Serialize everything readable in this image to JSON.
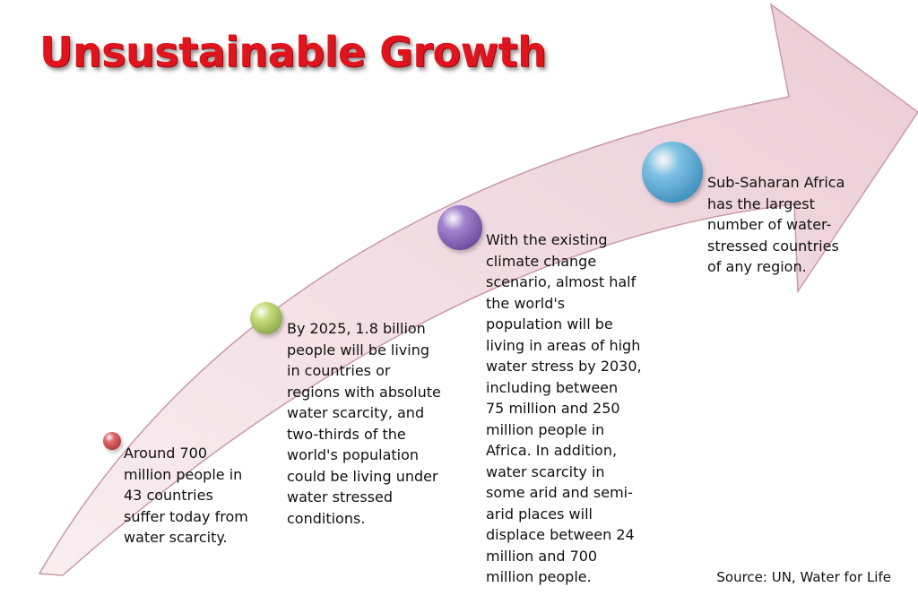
{
  "title": "Unsustainable Growth",
  "steps": [
    {
      "text": "Around 700\nmillion people in\n43 countries\nsuffer today from\nwater scarcity.",
      "color": "#e06a6a"
    },
    {
      "text": "By 2025, 1.8 billion\npeople will be living\nin countries or\nregions with absolute\nwater scarcity, and\ntwo-thirds of the\nworld's population\ncould be living under\nwater stressed\nconditions.",
      "color": "#c6de7a"
    },
    {
      "text": "With the existing\nclimate change\nscenario, almost half\nthe world's\npopulation will be\nliving in areas of high\nwater stress by 2030,\nincluding between\n75 million and 250\nmillion people in\nAfrica. In addition,\nwater scarcity in\nsome arid and semi-\narid places will\ndisplace between 24\nmillion and 700\nmillion people.",
      "color": "#a283cf"
    },
    {
      "text": "Sub-Saharan Africa\nhas the largest\nnumber of water-\nstressed countries\nof any region.",
      "color": "#7fc2e4"
    }
  ],
  "source": "Source: UN, Water for Life",
  "colors": {
    "title": "#e0141c",
    "arrow_fill": "#f3dde3",
    "arrow_stroke": "#c99aa6"
  }
}
